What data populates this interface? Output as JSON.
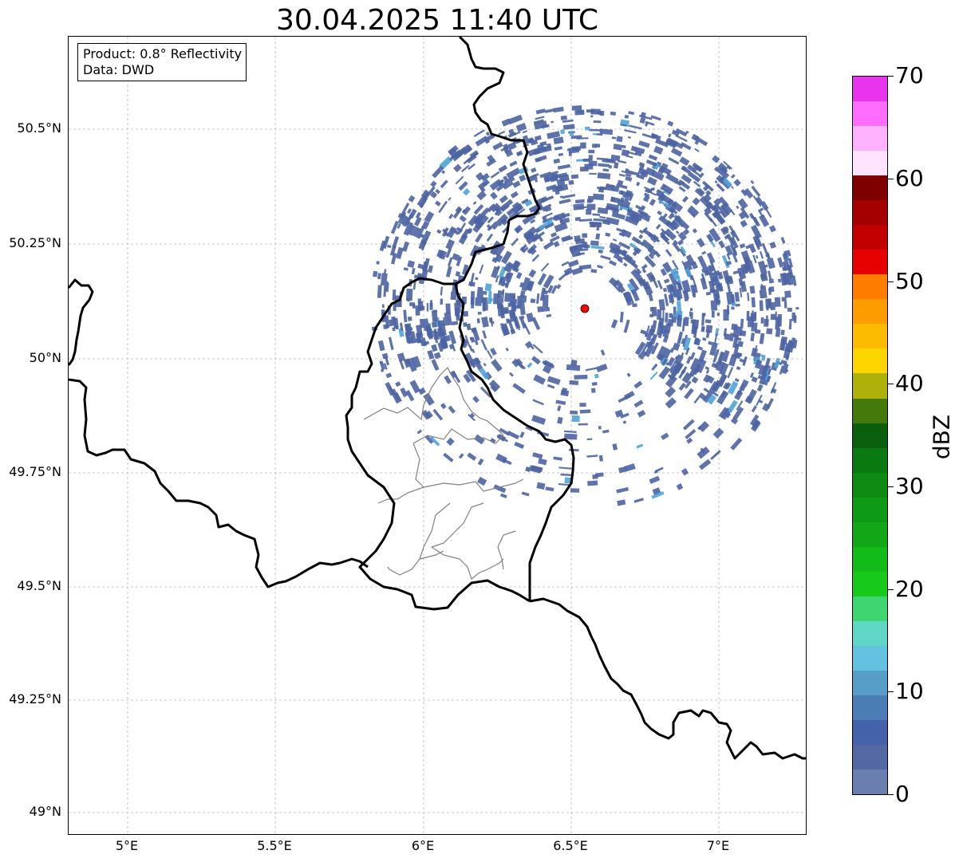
{
  "title": "30.04.2025 11:40 UTC",
  "info": {
    "product": "Product: 0.8° Reflectivity",
    "data": "Data: DWD"
  },
  "axes": {
    "lon_ticks": [
      "5°E",
      "5.5°E",
      "6°E",
      "6.5°E",
      "7°E"
    ],
    "lat_ticks": [
      "50.5°N",
      "50.25°N",
      "50°N",
      "49.75°N",
      "49.5°N",
      "49.25°N",
      "49°N"
    ]
  },
  "colorbar": {
    "label": "dBZ",
    "ticks": [
      "0",
      "10",
      "20",
      "30",
      "40",
      "50",
      "60",
      "70"
    ],
    "colors": [
      "#6a7fae",
      "#5469a3",
      "#4462a9",
      "#4a7db4",
      "#569dc8",
      "#63c2e0",
      "#5fd6c6",
      "#3ed671",
      "#16c91b",
      "#12bb18",
      "#11a716",
      "#0f9a15",
      "#0c8a12",
      "#0a7a10",
      "#0a5f0d",
      "#437a0b",
      "#aeb10a",
      "#fdd600",
      "#fdbb00",
      "#fd9d00",
      "#fe7c00",
      "#e60000",
      "#c30000",
      "#a50000",
      "#7f0000",
      "#ffe3ff",
      "#ffb3ff",
      "#ff6dff",
      "#e834ed"
    ]
  },
  "map": {
    "gridlines": true,
    "radar_site_color": "#ff0000",
    "echo_color": "#4d64a3",
    "echo_light_color": "#4fa3d9"
  }
}
